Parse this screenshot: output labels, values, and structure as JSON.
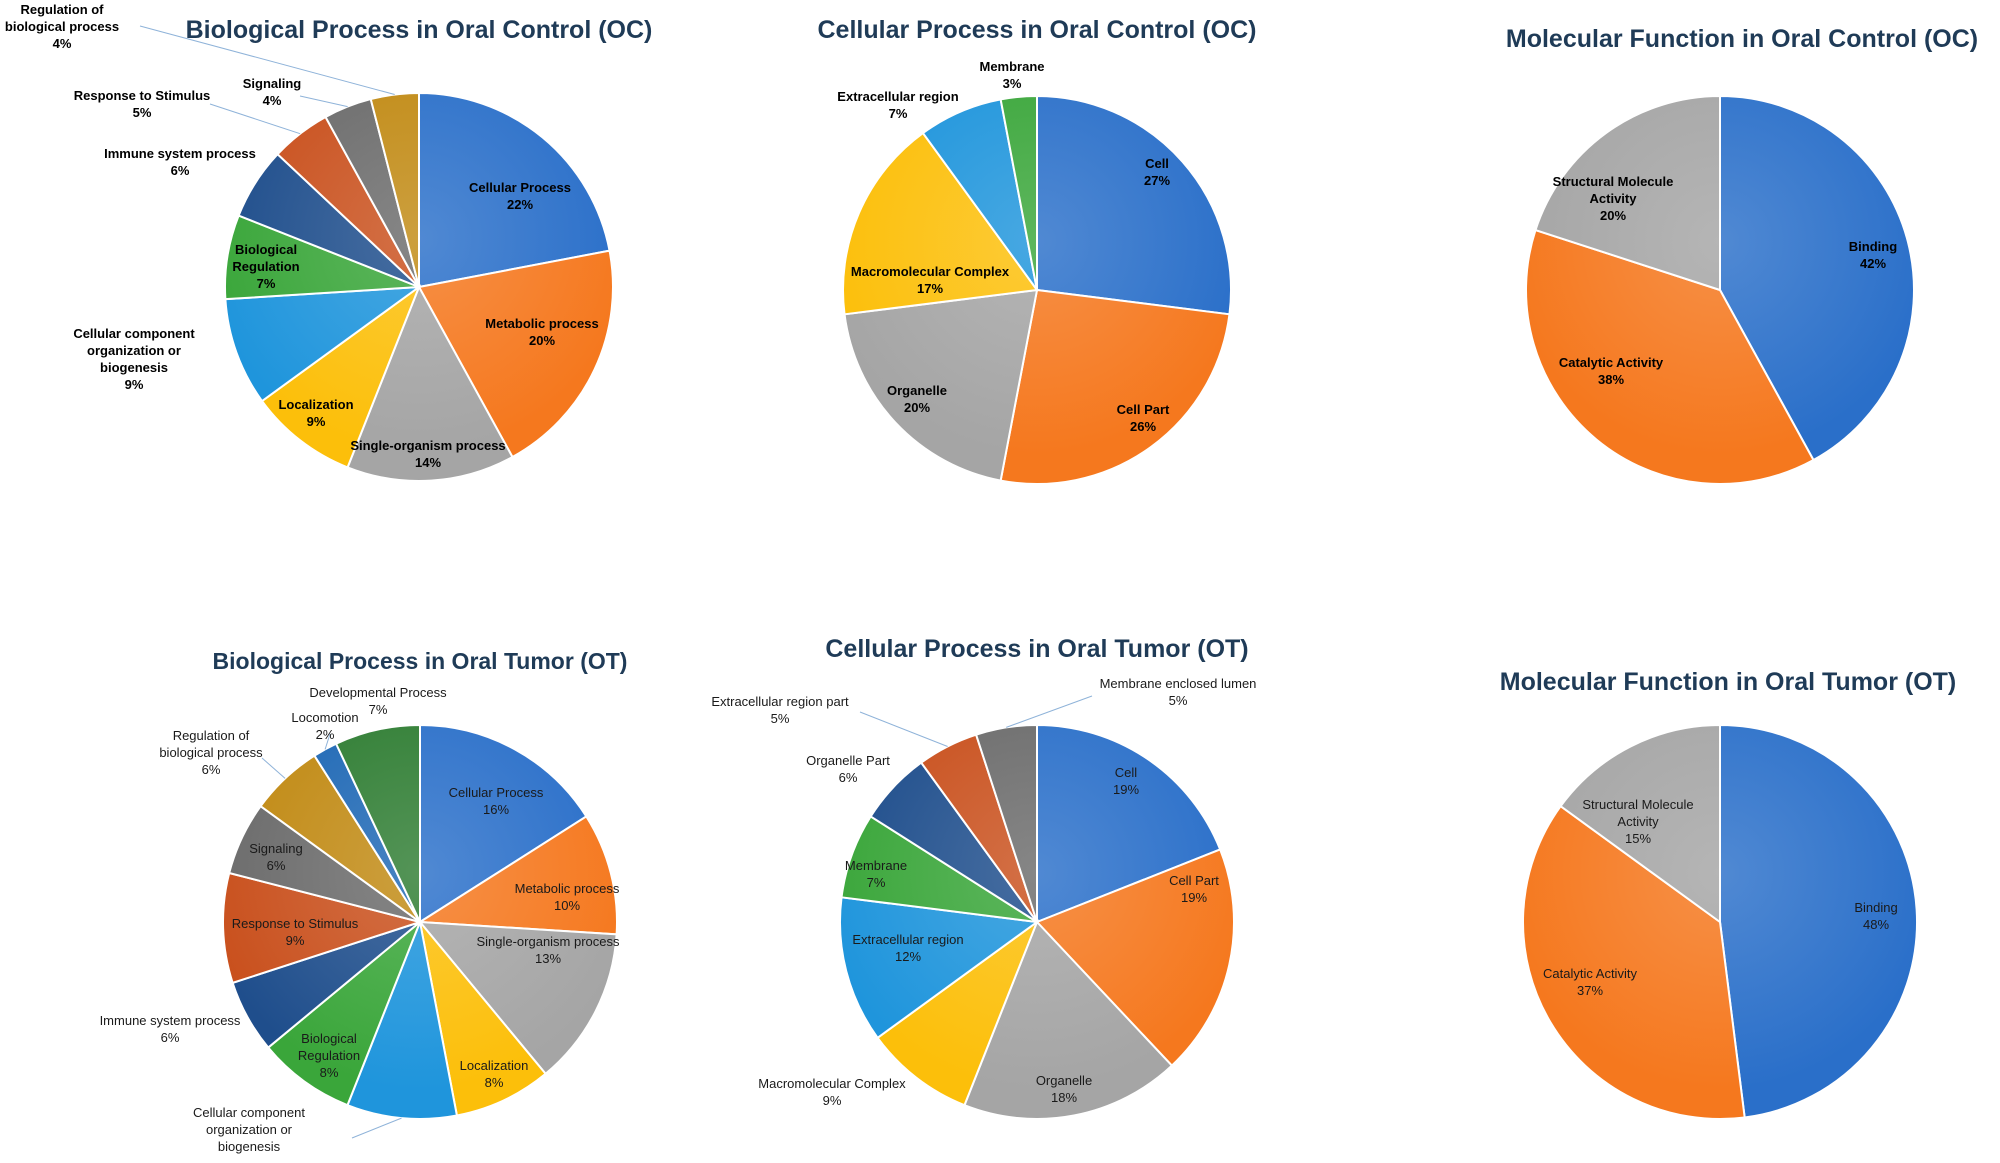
{
  "chart_data": [
    {
      "type": "pie",
      "title": "Biological Process in Oral Control (OC)",
      "slices": [
        {
          "label": "Cellular Process",
          "value": 22,
          "color": "#2a6fc9"
        },
        {
          "label": "Metabolic process",
          "value": 20,
          "color": "#f5781e"
        },
        {
          "label": "Single-organism process",
          "value": 14,
          "color": "#a5a5a5"
        },
        {
          "label": "Localization",
          "value": 9,
          "color": "#fcbf0a"
        },
        {
          "label": "Cellular component organization or biogenesis",
          "value": 9,
          "color": "#1f95dc"
        },
        {
          "label": "Biological Regulation",
          "value": 7,
          "color": "#3aa63a"
        },
        {
          "label": "Immune system process",
          "value": 6,
          "color": "#1f4e8c"
        },
        {
          "label": "Response to Stimulus",
          "value": 5,
          "color": "#c9501d"
        },
        {
          "label": "Signaling",
          "value": 4,
          "color": "#6b6b6b"
        },
        {
          "label": "Regulation of biological process",
          "value": 4,
          "color": "#c18a14"
        }
      ]
    },
    {
      "type": "pie",
      "title": "Cellular Process in Oral Control (OC)",
      "slices": [
        {
          "label": "Cell",
          "value": 27,
          "color": "#2a6fc9"
        },
        {
          "label": "Cell Part",
          "value": 26,
          "color": "#f5781e"
        },
        {
          "label": "Organelle",
          "value": 20,
          "color": "#a5a5a5"
        },
        {
          "label": "Macromolecular Complex",
          "value": 17,
          "color": "#fcbf0a"
        },
        {
          "label": "Extracellular region",
          "value": 7,
          "color": "#1f95dc"
        },
        {
          "label": "Membrane",
          "value": 3,
          "color": "#3aa63a"
        }
      ]
    },
    {
      "type": "pie",
      "title": "Molecular Function in Oral Control (OC)",
      "slices": [
        {
          "label": "Binding",
          "value": 42,
          "color": "#2a6fc9"
        },
        {
          "label": "Catalytic Activity",
          "value": 38,
          "color": "#f5781e"
        },
        {
          "label": "Structural Molecule Activity",
          "value": 20,
          "color": "#a5a5a5"
        }
      ]
    },
    {
      "type": "pie",
      "title": "Biological Process in Oral Tumor (OT)",
      "slices": [
        {
          "label": "Cellular Process",
          "value": 16,
          "color": "#2a6fc9"
        },
        {
          "label": "Metabolic process",
          "value": 10,
          "color": "#f5781e"
        },
        {
          "label": "Single-organism process",
          "value": 13,
          "color": "#a5a5a5"
        },
        {
          "label": "Localization",
          "value": 8,
          "color": "#fcbf0a"
        },
        {
          "label": "Cellular component organization or biogenesis",
          "value": 9,
          "color": "#1f95dc"
        },
        {
          "label": "Biological Regulation",
          "value": 8,
          "color": "#3aa63a"
        },
        {
          "label": "Immune system process",
          "value": 6,
          "color": "#1f4e8c"
        },
        {
          "label": "Response to Stimulus",
          "value": 9,
          "color": "#c9501d"
        },
        {
          "label": "Signaling",
          "value": 6,
          "color": "#6b6b6b"
        },
        {
          "label": "Regulation of biological process",
          "value": 6,
          "color": "#c18a14"
        },
        {
          "label": "Locomotion",
          "value": 2,
          "color": "#1e68b5"
        },
        {
          "label": "Developmental Process",
          "value": 7,
          "color": "#2e7d32"
        }
      ]
    },
    {
      "type": "pie",
      "title": "Cellular Process in Oral Tumor (OT)",
      "slices": [
        {
          "label": "Cell",
          "value": 19,
          "color": "#2a6fc9"
        },
        {
          "label": "Cell Part",
          "value": 19,
          "color": "#f5781e"
        },
        {
          "label": "Organelle",
          "value": 18,
          "color": "#a5a5a5"
        },
        {
          "label": "Macromolecular Complex",
          "value": 9,
          "color": "#fcbf0a"
        },
        {
          "label": "Extracellular region",
          "value": 12,
          "color": "#1f95dc"
        },
        {
          "label": "Membrane",
          "value": 7,
          "color": "#3aa63a"
        },
        {
          "label": "Organelle Part",
          "value": 6,
          "color": "#1f4e8c"
        },
        {
          "label": "Extracellular region part",
          "value": 5,
          "color": "#c9501d"
        },
        {
          "label": "Membrane enclosed lumen",
          "value": 5,
          "color": "#6b6b6b"
        }
      ]
    },
    {
      "type": "pie",
      "title": "Molecular Function in Oral Tumor (OT)",
      "slices": [
        {
          "label": "Binding",
          "value": 48,
          "color": "#2a6fc9"
        },
        {
          "label": "Catalytic Activity",
          "value": 37,
          "color": "#f5781e"
        },
        {
          "label": "Structural Molecule Activity",
          "value": 15,
          "color": "#a5a5a5"
        }
      ]
    }
  ]
}
